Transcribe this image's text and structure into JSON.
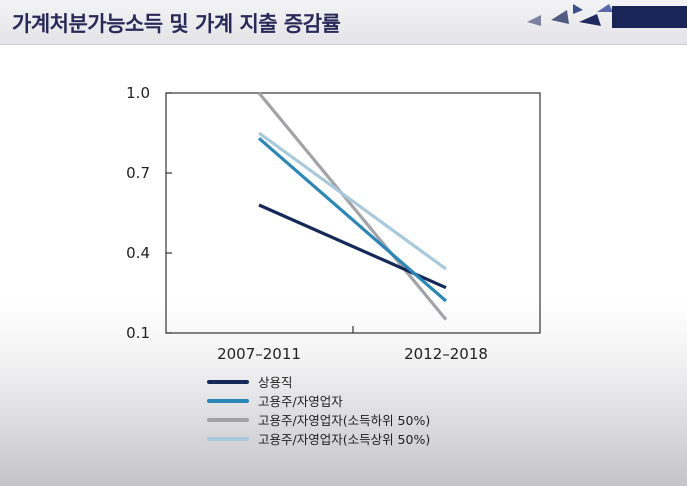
{
  "header": {
    "title": "가계처분가능소득 및 가계 지출 증감률"
  },
  "chart_data": {
    "type": "line",
    "categories": [
      "2007–2011",
      "2012–2018"
    ],
    "ylim": [
      0.1,
      1.0
    ],
    "yticks": [
      "1.0",
      "0.7",
      "0.4",
      "0.1"
    ],
    "ytick_values": [
      1.0,
      0.7,
      0.4,
      0.1
    ],
    "grid": false,
    "legend_position": "bottom",
    "series": [
      {
        "name": "상용직",
        "values": [
          0.58,
          0.27
        ],
        "color": "#14295a"
      },
      {
        "name": "고용주/자영업자",
        "values": [
          0.83,
          0.22
        ],
        "color": "#2a88b8"
      },
      {
        "name": "고용주/자영업자(소득하위 50%)",
        "values": [
          1.0,
          0.15
        ],
        "color": "#a3a3a7"
      },
      {
        "name": "고용주/자영업자(소득상위 50%)",
        "values": [
          0.85,
          0.34
        ],
        "color": "#a8c9dc"
      }
    ]
  }
}
